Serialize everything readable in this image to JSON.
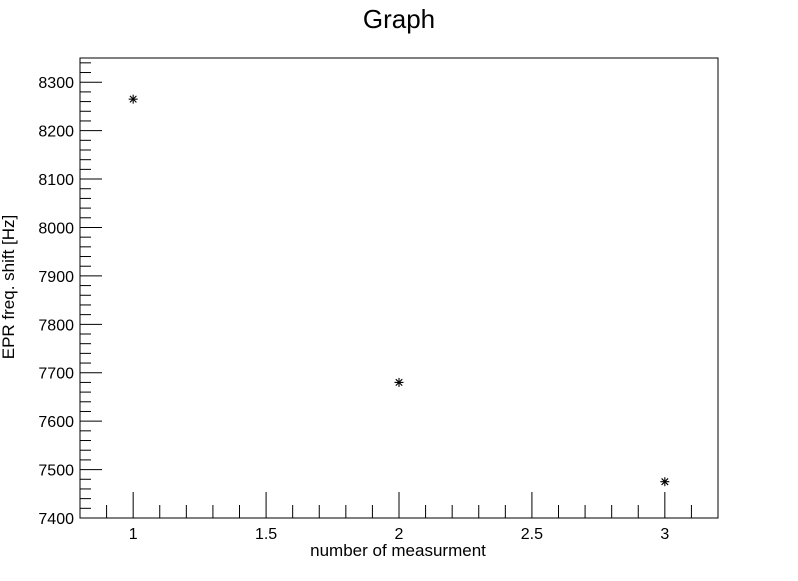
{
  "chart_data": {
    "type": "scatter",
    "title": "Graph",
    "xlabel": "number of measurment",
    "ylabel": "EPR freq. shift [Hz]",
    "xlim": [
      0.8,
      3.2
    ],
    "ylim": [
      7400,
      8350
    ],
    "xticks": [
      1,
      1.5,
      2,
      2.5,
      3
    ],
    "xtick_labels": [
      "1",
      "1.5",
      "2",
      "2.5",
      "3"
    ],
    "yticks": [
      7400,
      7500,
      7600,
      7700,
      7800,
      7900,
      8000,
      8100,
      8200,
      8300
    ],
    "ytick_labels": [
      "7400",
      "7500",
      "7600",
      "7700",
      "7800",
      "7900",
      "8000",
      "8100",
      "8200",
      "8300"
    ],
    "grid": false,
    "marker": "asterisk",
    "series": [
      {
        "x": [
          1,
          2,
          3
        ],
        "y": [
          8265,
          7680,
          7475
        ]
      }
    ]
  }
}
